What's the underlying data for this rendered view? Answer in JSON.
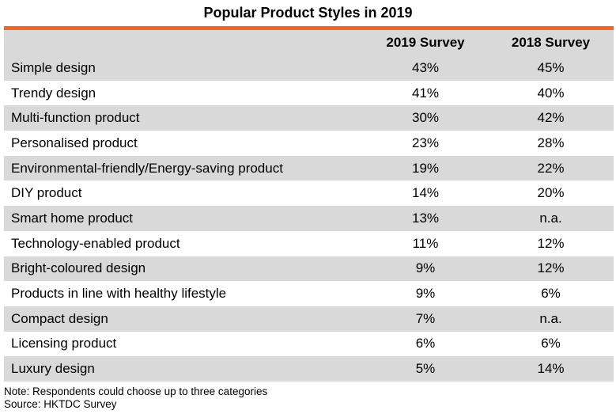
{
  "title": "Popular Product Styles in 2019",
  "colors": {
    "accent": "#F26522",
    "stripe": "#D9D9D9"
  },
  "chart_data": {
    "type": "table",
    "title": "Popular Product Styles in 2019",
    "columns": [
      "",
      "2019 Survey",
      "2018 Survey"
    ],
    "rows": [
      [
        "Simple design",
        "43%",
        "45%"
      ],
      [
        "Trendy design",
        "41%",
        "40%"
      ],
      [
        "Multi-function product",
        "30%",
        "42%"
      ],
      [
        "Personalised product",
        "23%",
        "28%"
      ],
      [
        "Environmental-friendly/Energy-saving product",
        "19%",
        "22%"
      ],
      [
        "DIY product",
        "14%",
        "20%"
      ],
      [
        "Smart home product",
        "13%",
        "n.a."
      ],
      [
        "Technology-enabled product",
        "11%",
        "12%"
      ],
      [
        "Bright-coloured design",
        "9%",
        "12%"
      ],
      [
        "Products in line with healthy lifestyle",
        "9%",
        "6%"
      ],
      [
        "Compact design",
        "7%",
        "n.a."
      ],
      [
        "Licensing product",
        "6%",
        "6%"
      ],
      [
        "Luxury design",
        "5%",
        "14%"
      ]
    ]
  },
  "notes": {
    "note": "Note: Respondents could choose up to three categories",
    "source": "Source: HKTDC Survey"
  }
}
